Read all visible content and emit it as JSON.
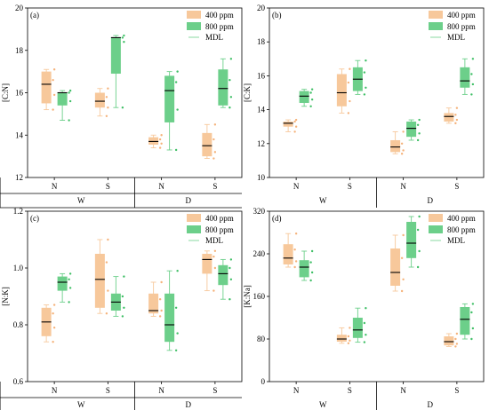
{
  "colors": {
    "c400": "#f7c89b",
    "c400_dot": "#f5b27a",
    "c800": "#6ccf8a",
    "c800_dot": "#3fbf66",
    "axis": "#000000",
    "mdl": "#000000"
  },
  "legend": {
    "s400": "400 ppm",
    "s800": "800 ppm",
    "mdl": "MDL"
  },
  "chart_data": [
    {
      "type": "box",
      "panel": "(a)",
      "ylabel": "[C:N]",
      "ylim": [
        12,
        20
      ],
      "yticks": [
        12,
        14,
        16,
        18,
        20
      ],
      "groups": [
        "N",
        "S",
        "N",
        "S"
      ],
      "supergroups": [
        "W",
        "D"
      ],
      "series": [
        {
          "name": "400 ppm",
          "boxes": [
            {
              "min": 15.2,
              "q1": 15.5,
              "median": 16.4,
              "q3": 17.0,
              "max": 17.1,
              "points": [
                15.2,
                15.9,
                16.6,
                17.1
              ]
            },
            {
              "min": 14.9,
              "q1": 15.3,
              "median": 15.6,
              "q3": 16.0,
              "max": 16.2,
              "points": [
                14.9,
                15.3,
                15.8,
                16.2
              ]
            },
            {
              "min": 13.4,
              "q1": 13.55,
              "median": 13.7,
              "q3": 13.9,
              "max": 14.0,
              "points": [
                13.4,
                13.6,
                13.8,
                14.0
              ]
            },
            {
              "min": 12.9,
              "q1": 13.0,
              "median": 13.5,
              "q3": 14.1,
              "max": 14.5,
              "points": [
                12.9,
                13.2,
                13.8,
                14.5
              ]
            }
          ]
        },
        {
          "name": "800 ppm",
          "boxes": [
            {
              "min": 14.7,
              "q1": 15.4,
              "median": 16.0,
              "q3": 16.0,
              "max": 16.1,
              "points": [
                14.7,
                15.6,
                16.0,
                16.1
              ]
            },
            {
              "min": 15.3,
              "q1": 16.9,
              "median": 18.6,
              "q3": 18.6,
              "max": 18.7,
              "points": [
                15.3,
                18.4,
                18.6,
                18.7
              ]
            },
            {
              "min": 13.3,
              "q1": 14.6,
              "median": 16.1,
              "q3": 16.8,
              "max": 17.0,
              "points": [
                13.3,
                15.2,
                16.5,
                17.0
              ]
            },
            {
              "min": 15.3,
              "q1": 15.4,
              "median": 16.2,
              "q3": 17.1,
              "max": 17.6,
              "points": [
                15.3,
                15.8,
                16.6,
                17.6
              ]
            }
          ]
        }
      ]
    },
    {
      "type": "box",
      "panel": "(b)",
      "ylabel": "[C:K]",
      "ylim": [
        10,
        20
      ],
      "yticks": [
        10,
        12,
        14,
        16,
        18,
        20
      ],
      "groups": [
        "N",
        "S",
        "N",
        "S"
      ],
      "supergroups": [
        "W",
        "D"
      ],
      "series": [
        {
          "name": "400 ppm",
          "boxes": [
            {
              "min": 12.7,
              "q1": 13.0,
              "median": 13.2,
              "q3": 13.3,
              "max": 13.4,
              "points": [
                12.7,
                13.0,
                13.3,
                13.4
              ]
            },
            {
              "min": 13.8,
              "q1": 14.2,
              "median": 15.0,
              "q3": 16.1,
              "max": 16.4,
              "points": [
                13.8,
                14.5,
                15.6,
                16.4
              ]
            },
            {
              "min": 11.4,
              "q1": 11.5,
              "median": 11.8,
              "q3": 12.2,
              "max": 12.7,
              "points": [
                11.4,
                11.6,
                12.0,
                12.7
              ]
            },
            {
              "min": 13.2,
              "q1": 13.3,
              "median": 13.6,
              "q3": 13.8,
              "max": 14.1,
              "points": [
                13.2,
                13.4,
                13.7,
                14.1
              ]
            }
          ]
        },
        {
          "name": "800 ppm",
          "boxes": [
            {
              "min": 14.2,
              "q1": 14.4,
              "median": 14.8,
              "q3": 15.1,
              "max": 15.2,
              "points": [
                14.2,
                14.6,
                15.0,
                15.2
              ]
            },
            {
              "min": 14.9,
              "q1": 15.1,
              "median": 15.8,
              "q3": 16.5,
              "max": 16.9,
              "points": [
                14.9,
                15.3,
                16.2,
                16.9
              ]
            },
            {
              "min": 12.2,
              "q1": 12.4,
              "median": 12.9,
              "q3": 13.3,
              "max": 13.4,
              "points": [
                12.2,
                12.6,
                13.1,
                13.4
              ]
            },
            {
              "min": 14.9,
              "q1": 15.3,
              "median": 15.7,
              "q3": 16.5,
              "max": 17.0,
              "points": [
                14.9,
                15.5,
                16.1,
                17.0
              ]
            }
          ]
        }
      ]
    },
    {
      "type": "box",
      "panel": "(c)",
      "ylabel": "[N:K]",
      "ylim": [
        0.6,
        1.2
      ],
      "yticks": [
        "0.6",
        "0.8",
        "1.0",
        "1.2"
      ],
      "groups": [
        "N",
        "S",
        "N",
        "S"
      ],
      "supergroups": [
        "W",
        "D"
      ],
      "series": [
        {
          "name": "400 ppm",
          "boxes": [
            {
              "min": 0.74,
              "q1": 0.76,
              "median": 0.81,
              "q3": 0.86,
              "max": 0.87,
              "points": [
                0.74,
                0.79,
                0.84,
                0.87
              ]
            },
            {
              "min": 0.84,
              "q1": 0.86,
              "median": 0.96,
              "q3": 1.05,
              "max": 1.1,
              "points": [
                0.84,
                0.92,
                1.02,
                1.1
              ]
            },
            {
              "min": 0.83,
              "q1": 0.84,
              "median": 0.85,
              "q3": 0.91,
              "max": 0.95,
              "points": [
                0.83,
                0.85,
                0.89,
                0.95
              ]
            },
            {
              "min": 0.92,
              "q1": 0.98,
              "median": 1.03,
              "q3": 1.05,
              "max": 1.06,
              "points": [
                0.92,
                1.0,
                1.04,
                1.06
              ]
            }
          ]
        },
        {
          "name": "800 ppm",
          "boxes": [
            {
              "min": 0.88,
              "q1": 0.92,
              "median": 0.95,
              "q3": 0.97,
              "max": 0.98,
              "points": [
                0.88,
                0.93,
                0.96,
                0.98
              ]
            },
            {
              "min": 0.83,
              "q1": 0.85,
              "median": 0.88,
              "q3": 0.91,
              "max": 0.97,
              "points": [
                0.83,
                0.86,
                0.9,
                0.97
              ]
            },
            {
              "min": 0.71,
              "q1": 0.74,
              "median": 0.8,
              "q3": 0.91,
              "max": 0.99,
              "points": [
                0.71,
                0.77,
                0.86,
                0.99
              ]
            },
            {
              "min": 0.89,
              "q1": 0.94,
              "median": 0.98,
              "q3": 1.01,
              "max": 1.03,
              "points": [
                0.89,
                0.96,
                1.0,
                1.03
              ]
            }
          ]
        }
      ]
    },
    {
      "type": "box",
      "panel": "(d)",
      "ylabel": "[K:Na]",
      "ylim": [
        0,
        320
      ],
      "yticks": [
        0,
        80,
        160,
        240,
        320
      ],
      "groups": [
        "N",
        "S",
        "N",
        "S"
      ],
      "supergroups": [
        "W",
        "D"
      ],
      "series": [
        {
          "name": "400 ppm",
          "boxes": [
            {
              "min": 215,
              "q1": 220,
              "median": 232,
              "q3": 258,
              "max": 278,
              "points": [
                215,
                226,
                248,
                278
              ]
            },
            {
              "min": 72,
              "q1": 75,
              "median": 80,
              "q3": 88,
              "max": 101,
              "points": [
                72,
                77,
                85,
                101
              ]
            },
            {
              "min": 170,
              "q1": 180,
              "median": 205,
              "q3": 250,
              "max": 275,
              "points": [
                170,
                192,
                232,
                275
              ]
            },
            {
              "min": 66,
              "q1": 68,
              "median": 75,
              "q3": 85,
              "max": 90,
              "points": [
                66,
                71,
                80,
                90
              ]
            }
          ]
        },
        {
          "name": "800 ppm",
          "boxes": [
            {
              "min": 190,
              "q1": 196,
              "median": 215,
              "q3": 228,
              "max": 245,
              "points": [
                190,
                205,
                224,
                245
              ]
            },
            {
              "min": 74,
              "q1": 82,
              "median": 97,
              "q3": 120,
              "max": 138,
              "points": [
                74,
                88,
                110,
                138
              ]
            },
            {
              "min": 215,
              "q1": 232,
              "median": 260,
              "q3": 300,
              "max": 310,
              "points": [
                215,
                245,
                285,
                310
              ]
            },
            {
              "min": 80,
              "q1": 88,
              "median": 117,
              "q3": 140,
              "max": 146,
              "points": [
                80,
                100,
                130,
                146
              ]
            }
          ]
        }
      ]
    }
  ]
}
